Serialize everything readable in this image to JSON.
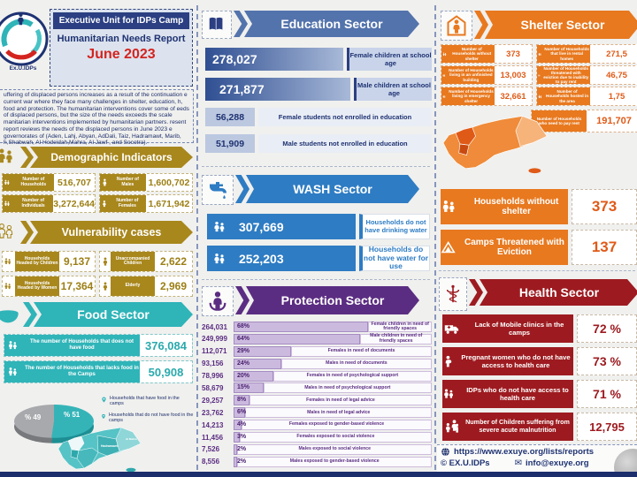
{
  "logo": {
    "caption": "Ex.U.IDPs"
  },
  "title_box": {
    "bar": "Executive Unit for IDPs Camp",
    "line2": "Humanitarian Needs Report",
    "line3": "June 2023"
  },
  "intro": "uffering of displaced persons increases as a result of the continuation e current war where they face many challenges in shelter, education, h, food and protection. The humanitarian interventions cover some of eeds of displaced persons, but the size of the needs exceeds the scale manitarian interventions implemented by humanitarian partners. resent report reviews the needs of the displaced persons in June 2023 e governorates of (Aden, Lahj, Abyan, AdDali, Taiz, Hadramawt, Marib, h,Shabwah, Al Hodeidah,Mahra, Al Jawf , and Socotra).",
  "demographic": {
    "title": "Demographic Indicators",
    "items": [
      {
        "label": "Number of Households",
        "value": "516,707"
      },
      {
        "label": "Number of Males",
        "value": "1,600,702"
      },
      {
        "label": "Number of Individuals",
        "value": "3,272,644"
      },
      {
        "label": "Number of Females",
        "value": "1,671,942"
      }
    ]
  },
  "vulnerability": {
    "title": "Vulnerability cases",
    "items": [
      {
        "label": "Households Headed by Children",
        "value": "9,137"
      },
      {
        "label": "Unaccompanied Children",
        "value": "2,622"
      },
      {
        "label": "Households Headed by Women",
        "value": "17,364"
      },
      {
        "label": "Elderly",
        "value": "2,969"
      }
    ]
  },
  "food": {
    "title": "Food Sector",
    "items": [
      {
        "label": "The number of Households that does not have food",
        "value": "376,084"
      },
      {
        "label": "The number of Households that lacks food in the Camps",
        "value": "50,908"
      }
    ],
    "pie_left_label": "% 49",
    "pie_right_label": "% 51",
    "legend": [
      "Households that have food in the camps",
      "Households that do not have food in the camps"
    ],
    "map_labels": [
      "Hadramawt",
      "Al Mahra"
    ]
  },
  "education": {
    "title": "Education Sector",
    "rows_large": [
      {
        "value": "278,027",
        "label": "Female children at school age"
      },
      {
        "value": "271,877",
        "label": "Male children at school age"
      }
    ],
    "rows_small": [
      {
        "value": "56,288",
        "label": "Female students not enrolled in education"
      },
      {
        "value": "51,909",
        "label": "Male students not enrolled in education"
      }
    ]
  },
  "wash": {
    "title": "WASH Sector",
    "rows": [
      {
        "value": "307,669",
        "label": "Households do not have drinking water"
      },
      {
        "value": "252,203",
        "label": "Households do not have water for use"
      }
    ]
  },
  "protection": {
    "title": "Protection Sector",
    "rows": [
      {
        "value": "264,031",
        "pct": 68,
        "pct_label": "68%",
        "label": "Female children in need of friendly spaces"
      },
      {
        "value": "249,999",
        "pct": 64,
        "pct_label": "64%",
        "label": "Male children in need of friendly spaces"
      },
      {
        "value": "112,071",
        "pct": 29,
        "pct_label": "29%",
        "label": "Females in need of documents"
      },
      {
        "value": "93,156",
        "pct": 24,
        "pct_label": "24%",
        "label": "Males in need of documents"
      },
      {
        "value": "78,996",
        "pct": 20,
        "pct_label": "20%",
        "label": "Females in need of psychological support"
      },
      {
        "value": "58,679",
        "pct": 15,
        "pct_label": "15%",
        "label": "Males in need of psychological support"
      },
      {
        "value": "29,257",
        "pct": 8,
        "pct_label": "8%",
        "label": "Females in need of legal advice"
      },
      {
        "value": "23,762",
        "pct": 6,
        "pct_label": "6%",
        "label": "Males in need of legal advice"
      },
      {
        "value": "14,213",
        "pct": 4,
        "pct_label": "4%",
        "label": "Females exposed to gender-based violence"
      },
      {
        "value": "11,456",
        "pct": 3,
        "pct_label": "3%",
        "label": "Females exposed to social violence"
      },
      {
        "value": "7,526",
        "pct": 2,
        "pct_label": "2%",
        "label": "Males exposed to social violence"
      },
      {
        "value": "8,556",
        "pct": 2,
        "pct_label": "2%",
        "label": "Males exposed to gender-based violence"
      }
    ]
  },
  "shelter": {
    "title": "Shelter Sector",
    "left_items": [
      {
        "label": "Number of Households without shelter",
        "value": "373"
      },
      {
        "label": "Number of Households living in an unfinished building",
        "value": "13,003"
      },
      {
        "label": "Number of Households living in emergency shelter",
        "value": "32,661"
      }
    ],
    "right_items": [
      {
        "label": "Number of Households that live in rental homes",
        "value": "271,5"
      },
      {
        "label": "Number of Households threatened with eviction due to inability to pay rent",
        "value": "46,75"
      },
      {
        "label": "Number of Households hosted in the area",
        "value": "1,75"
      }
    ],
    "rent": {
      "label": "Number of Households who need to pay rent",
      "value": "191,707"
    },
    "chips": [
      {
        "label": "Households without shelter",
        "value": "373"
      },
      {
        "label": "Camps Threatened with Eviction",
        "value": "137"
      }
    ]
  },
  "health": {
    "title": "Health Sector",
    "rows": [
      {
        "label": "Lack of Mobile clinics in the camps",
        "value": "72 %"
      },
      {
        "label": "Pregnant women who do not have access to health care",
        "value": "73 %"
      },
      {
        "label": "IDPs who do not have access to health care",
        "value": "71 %"
      },
      {
        "label": "Number of Children suffering from severe acute malnutrition",
        "value": "12,795"
      }
    ]
  },
  "footer": {
    "url": "https://www.exuye.org/lists/reports",
    "copyright": "© EX.U.IDPs",
    "email": "info@exuye.org"
  },
  "colors": {
    "navy": "#1c2e6b",
    "red": "#d42420",
    "gold": "#a8871d",
    "teal": "#2fb4b8",
    "edu_blue": "#5373ac",
    "wash_blue": "#2e7cc3",
    "purple": "#5b2d82",
    "orange": "#e8791f",
    "health_red": "#9d1b20",
    "pie_gray": "#a7a9ac"
  },
  "chart_data": [
    {
      "type": "bar",
      "orientation": "horizontal",
      "title": "Protection Sector",
      "categories": [
        "Female children in need of friendly spaces",
        "Male children in need of friendly spaces",
        "Females in need of documents",
        "Males in need of documents",
        "Females in need of psychological support",
        "Males in need of psychological support",
        "Females in need of legal advice",
        "Males in need of legal advice",
        "Females exposed to gender-based violence",
        "Females exposed to social violence",
        "Males exposed to social violence",
        "Males exposed to gender-based violence"
      ],
      "values": [
        68,
        64,
        29,
        24,
        20,
        15,
        8,
        6,
        4,
        3,
        2,
        2
      ],
      "counts": [
        264031,
        249999,
        112071,
        93156,
        78996,
        58679,
        29257,
        23762,
        14213,
        11456,
        7526,
        8556
      ],
      "xlabel": "",
      "ylabel": "",
      "xlim": [
        0,
        100
      ],
      "unit": "%",
      "legend_position": "none",
      "grid": false
    },
    {
      "type": "pie",
      "title": "",
      "labels": [
        "Households that have food in the camps",
        "Households that do not have food in the camps"
      ],
      "values": [
        49,
        51
      ],
      "colors": [
        "#a7a9ac",
        "#35b4b8"
      ]
    }
  ]
}
